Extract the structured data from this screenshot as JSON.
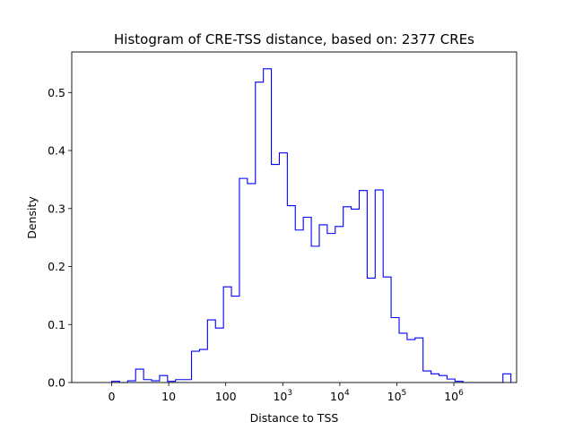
{
  "chart_data": {
    "type": "histogram-step",
    "title": "Histogram of CRE-TSS distance, based on: 2377 CREs",
    "xlabel": "Distance to TSS",
    "ylabel": "Density",
    "x_scale": "symlog",
    "xlim": [
      -0.7,
      7.1
    ],
    "ylim": [
      0,
      0.57
    ],
    "line_color": "#0000ff",
    "grid": false,
    "x_ticks": [
      {
        "pos": 0,
        "base": "0",
        "exp": ""
      },
      {
        "pos": 1,
        "base": "10",
        "exp": ""
      },
      {
        "pos": 2,
        "base": "100",
        "exp": ""
      },
      {
        "pos": 3,
        "base": "10",
        "exp": "3"
      },
      {
        "pos": 4,
        "base": "10",
        "exp": "4"
      },
      {
        "pos": 5,
        "base": "10",
        "exp": "5"
      },
      {
        "pos": 6,
        "base": "10",
        "exp": "6"
      }
    ],
    "y_ticks": [
      "0.0",
      "0.1",
      "0.2",
      "0.3",
      "0.4",
      "0.5"
    ],
    "y_tick_values": [
      0.0,
      0.1,
      0.2,
      0.3,
      0.4,
      0.5
    ],
    "bin_edges": [
      0,
      0.14,
      0.28,
      0.42,
      0.56,
      0.7,
      0.84,
      0.98,
      1.12,
      1.26,
      1.4,
      1.54,
      1.68,
      1.82,
      1.96,
      2.1,
      2.24,
      2.38,
      2.52,
      2.66,
      2.8,
      2.94,
      3.08,
      3.22,
      3.36,
      3.5,
      3.64,
      3.78,
      3.92,
      4.06,
      4.2,
      4.34,
      4.48,
      4.62,
      4.76,
      4.9,
      5.04,
      5.18,
      5.32,
      5.46,
      5.6,
      5.74,
      5.88,
      6.02,
      6.16,
      6.3,
      6.44,
      6.58,
      6.72,
      6.86,
      7.0
    ],
    "values": [
      0.002,
      0.0,
      0.003,
      0.023,
      0.005,
      0.003,
      0.012,
      0.002,
      0.005,
      0.005,
      0.054,
      0.057,
      0.108,
      0.094,
      0.165,
      0.149,
      0.352,
      0.343,
      0.518,
      0.541,
      0.376,
      0.396,
      0.305,
      0.263,
      0.285,
      0.235,
      0.272,
      0.257,
      0.269,
      0.303,
      0.299,
      0.331,
      0.18,
      0.332,
      0.182,
      0.112,
      0.085,
      0.074,
      0.077,
      0.02,
      0.015,
      0.012,
      0.006,
      0.002,
      0.0,
      0.0,
      0.0,
      0.0,
      0.0,
      0.015
    ]
  }
}
